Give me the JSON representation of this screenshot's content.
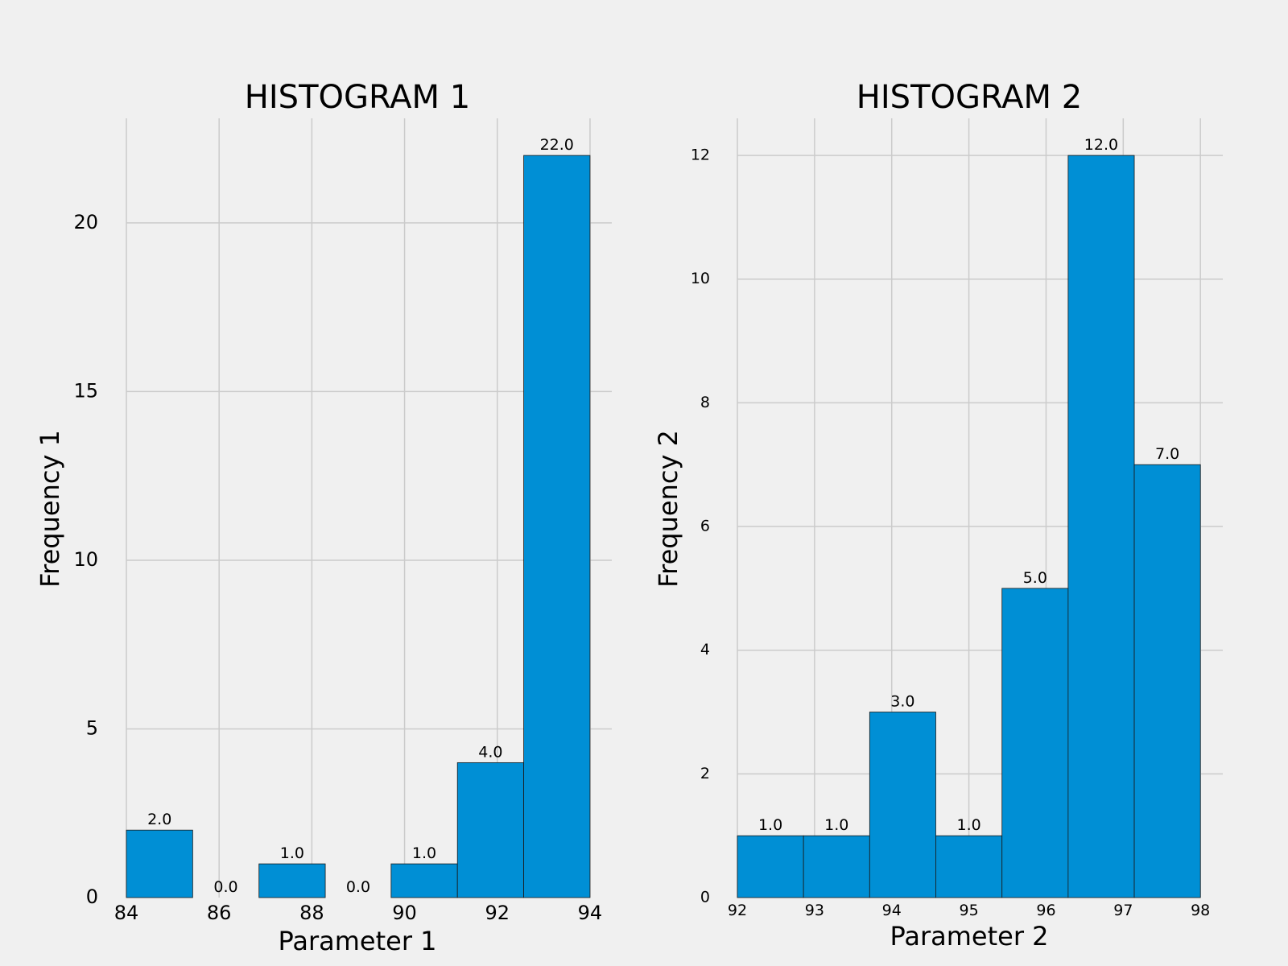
{
  "chart_data": [
    {
      "type": "bar",
      "title": "HISTOGRAM 1",
      "xlabel": "Parameter 1",
      "ylabel": "Frequency 1",
      "bin_edges": [
        84,
        85.43,
        86.86,
        88.29,
        89.71,
        91.14,
        92.57,
        94
      ],
      "values": [
        2.0,
        0.0,
        1.0,
        0.0,
        1.0,
        4.0,
        22.0
      ],
      "data_labels": [
        "2.0",
        "0.0",
        "1.0",
        "0.0",
        "1.0",
        "4.0",
        "22.0"
      ],
      "xticks": [
        84,
        86,
        88,
        90,
        92,
        94
      ],
      "yticks": [
        0,
        5,
        10,
        15,
        20
      ],
      "xlim": [
        84,
        94.47
      ],
      "ylim": [
        0,
        23.1
      ],
      "grid": true,
      "bar_color": "#008fd5"
    },
    {
      "type": "bar",
      "title": "HISTOGRAM 2",
      "xlabel": "Parameter 2",
      "ylabel": "Frequency 2",
      "bin_edges": [
        92,
        92.857,
        93.714,
        94.571,
        95.429,
        96.286,
        97.143,
        98
      ],
      "values": [
        1.0,
        1.0,
        3.0,
        1.0,
        5.0,
        12.0,
        7.0
      ],
      "data_labels": [
        "1.0",
        "1.0",
        "3.0",
        "1.0",
        "5.0",
        "12.0",
        "7.0"
      ],
      "xticks": [
        92,
        93,
        94,
        95,
        96,
        97,
        98
      ],
      "yticks": [
        0,
        2,
        4,
        6,
        8,
        10,
        12
      ],
      "xlim": [
        92,
        98.29
      ],
      "ylim": [
        0,
        12.6
      ],
      "grid": true,
      "bar_color": "#008fd5"
    }
  ],
  "colors": {
    "background": "#f0f0f0",
    "grid": "#cbcbcb",
    "bar": "#008fd5",
    "bar_edge": "#1a1a1a"
  }
}
